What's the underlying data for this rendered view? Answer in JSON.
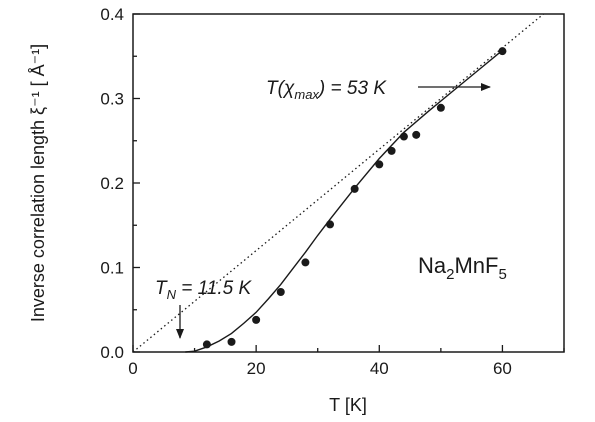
{
  "chart_data": {
    "type": "scatter",
    "xlabel": "T [K]",
    "ylabel": "Inverse correlation length ξ⁻¹ [ Å⁻¹]",
    "xlim": [
      0,
      70
    ],
    "ylim": [
      0,
      0.4
    ],
    "x_ticks": [
      0,
      20,
      40,
      60
    ],
    "x_tick_labels": [
      "0",
      "20",
      "40",
      "60"
    ],
    "y_ticks": [
      0.0,
      0.1,
      0.2,
      0.3,
      0.4
    ],
    "y_tick_labels": [
      "0.0",
      "0.1",
      "0.2",
      "0.3",
      "0.4"
    ],
    "grid": false,
    "series": [
      {
        "kind": "points",
        "x": [
          12,
          16,
          20,
          24,
          28,
          32,
          36,
          40,
          42,
          44,
          46,
          50,
          60
        ],
        "y": [
          0.009,
          0.012,
          0.038,
          0.071,
          0.106,
          0.151,
          0.193,
          0.222,
          0.238,
          0.255,
          0.257,
          0.289,
          0.356
        ]
      },
      {
        "kind": "fit-line",
        "x": [
          8.5,
          10,
          12,
          14,
          16,
          18,
          20,
          22,
          24,
          26,
          28,
          30,
          32,
          36,
          40,
          44,
          48,
          52,
          56,
          60
        ],
        "y": [
          0.0,
          0.001,
          0.006,
          0.013,
          0.022,
          0.034,
          0.047,
          0.063,
          0.08,
          0.099,
          0.118,
          0.138,
          0.157,
          0.194,
          0.229,
          0.26,
          0.285,
          0.309,
          0.333,
          0.357
        ]
      },
      {
        "kind": "reference-line",
        "x": [
          0,
          70
        ],
        "y": [
          0.0,
          0.42
        ]
      }
    ],
    "annotations": {
      "t_chi_max": {
        "prefix": "T(χ",
        "sub": "max",
        "suffix": ") = 53 K"
      },
      "t_neel": {
        "prefix": "T",
        "sub": "N",
        "suffix": " = 11.5 K"
      },
      "compound": {
        "p1": "Na",
        "s1": "2",
        "p2": "MnF",
        "s2": "5"
      }
    }
  }
}
